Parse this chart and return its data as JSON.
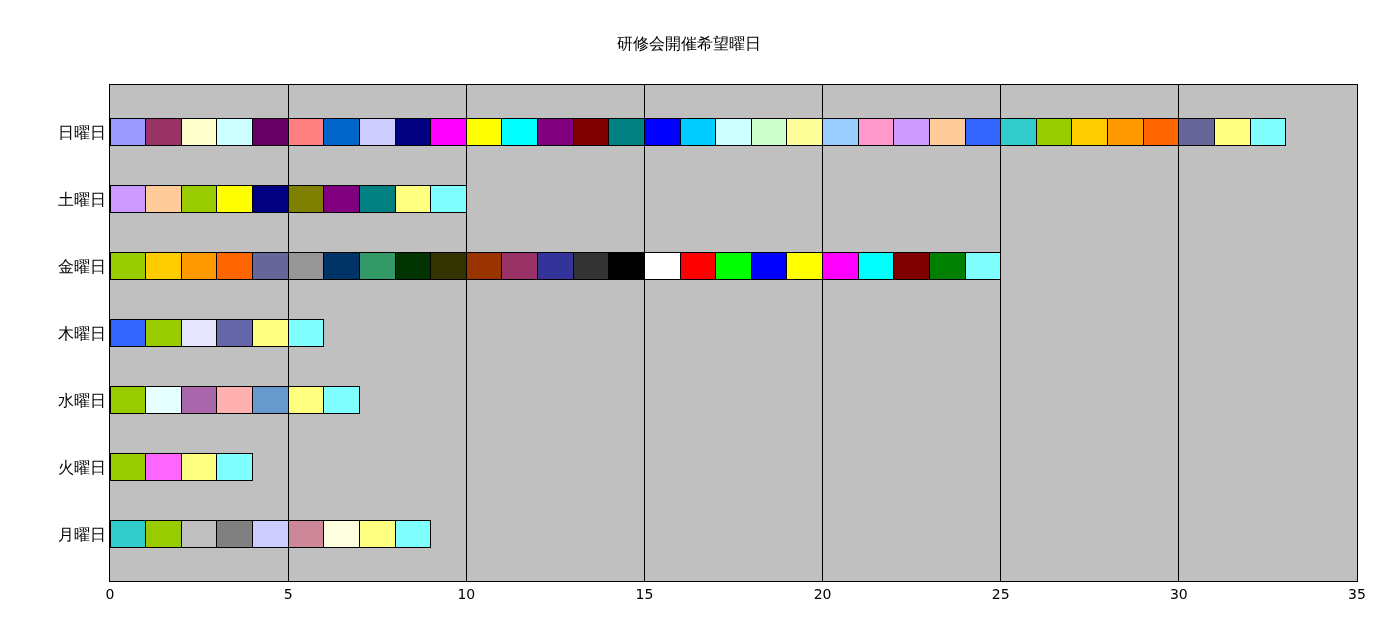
{
  "chart_data": {
    "type": "bar",
    "orientation": "horizontal",
    "stacked": true,
    "title": "研修会開催希望曜日",
    "categories": [
      "日曜日",
      "土曜日",
      "金曜日",
      "木曜日",
      "水曜日",
      "火曜日",
      "月曜日"
    ],
    "xlim": [
      0,
      35
    ],
    "xticks": [
      0,
      5,
      10,
      15,
      20,
      25,
      30,
      35
    ],
    "grid": "x",
    "series": [
      {
        "values": [
          1,
          1,
          1,
          1,
          1,
          1,
          1
        ],
        "colors": [
          "#9999ff",
          "#cc99ff",
          "#99cc00",
          "#3366ff",
          "#99cc00",
          "#99cc00",
          "#33cccc"
        ]
      },
      {
        "values": [
          1,
          1,
          1,
          1,
          1,
          1,
          1
        ],
        "colors": [
          "#993366",
          "#ffcc99",
          "#ffcc00",
          "#99cc00",
          "#e6ffff",
          "#ff66ff",
          "#99cc00"
        ]
      },
      {
        "values": [
          1,
          1,
          1,
          1,
          1,
          1,
          1
        ],
        "colors": [
          "#ffffcc",
          "#99cc00",
          "#ff9900",
          "#e6e6ff",
          "#aa66aa",
          "#ffff80",
          "#c0c0c0"
        ]
      },
      {
        "values": [
          1,
          1,
          1,
          1,
          1,
          1,
          1
        ],
        "colors": [
          "#ccffff",
          "#ffff00",
          "#ff6600",
          "#6666aa",
          "#ffb0b0",
          "#80ffff",
          "#808080"
        ]
      },
      {
        "values": [
          1,
          1,
          1,
          1,
          1,
          null,
          1
        ],
        "colors": [
          "#660066",
          "#000080",
          "#666699",
          "#ffff80",
          "#6699cc",
          null,
          "#ccccff"
        ]
      },
      {
        "values": [
          1,
          1,
          1,
          1,
          1,
          null,
          1
        ],
        "colors": [
          "#ff8080",
          "#808000",
          "#969696",
          "#80ffff",
          "#ffff80",
          null,
          "#cc8899"
        ]
      },
      {
        "values": [
          1,
          1,
          1,
          null,
          1,
          null,
          1
        ],
        "colors": [
          "#0066cc",
          "#800080",
          "#003366",
          null,
          "#80ffff",
          null,
          "#ffffe0"
        ]
      },
      {
        "values": [
          1,
          1,
          1,
          null,
          null,
          null,
          1
        ],
        "colors": [
          "#ccccff",
          "#008080",
          "#339966",
          null,
          null,
          null,
          "#ffff80"
        ]
      },
      {
        "values": [
          1,
          1,
          1,
          null,
          null,
          null,
          1
        ],
        "colors": [
          "#000080",
          "#ffff80",
          "#003300",
          null,
          null,
          null,
          "#80ffff"
        ]
      },
      {
        "values": [
          1,
          1,
          1,
          null,
          null,
          null,
          null
        ],
        "colors": [
          "#ff00ff",
          "#80ffff",
          "#333300",
          null,
          null,
          null,
          null
        ]
      },
      {
        "values": [
          1,
          null,
          1,
          null,
          null,
          null,
          null
        ],
        "colors": [
          "#ffff00",
          null,
          "#993300",
          null,
          null,
          null,
          null
        ]
      },
      {
        "values": [
          1,
          null,
          1,
          null,
          null,
          null,
          null
        ],
        "colors": [
          "#00ffff",
          null,
          "#993366",
          null,
          null,
          null,
          null
        ]
      },
      {
        "values": [
          1,
          null,
          1,
          null,
          null,
          null,
          null
        ],
        "colors": [
          "#800080",
          null,
          "#333399",
          null,
          null,
          null,
          null
        ]
      },
      {
        "values": [
          1,
          null,
          1,
          null,
          null,
          null,
          null
        ],
        "colors": [
          "#800000",
          null,
          "#333333",
          null,
          null,
          null,
          null
        ]
      },
      {
        "values": [
          1,
          null,
          1,
          null,
          null,
          null,
          null
        ],
        "colors": [
          "#008080",
          null,
          "#000000",
          null,
          null,
          null,
          null
        ]
      },
      {
        "values": [
          1,
          null,
          1,
          null,
          null,
          null,
          null
        ],
        "colors": [
          "#0000ff",
          null,
          "#ffffff",
          null,
          null,
          null,
          null
        ]
      },
      {
        "values": [
          1,
          null,
          1,
          null,
          null,
          null,
          null
        ],
        "colors": [
          "#00ccff",
          null,
          "#ff0000",
          null,
          null,
          null,
          null
        ]
      },
      {
        "values": [
          1,
          null,
          1,
          null,
          null,
          null,
          null
        ],
        "colors": [
          "#ccffff",
          null,
          "#00ff00",
          null,
          null,
          null,
          null
        ]
      },
      {
        "values": [
          1,
          null,
          1,
          null,
          null,
          null,
          null
        ],
        "colors": [
          "#ccffcc",
          null,
          "#0000ff",
          null,
          null,
          null,
          null
        ]
      },
      {
        "values": [
          1,
          null,
          1,
          null,
          null,
          null,
          null
        ],
        "colors": [
          "#ffff99",
          null,
          "#ffff00",
          null,
          null,
          null,
          null
        ]
      },
      {
        "values": [
          1,
          null,
          1,
          null,
          null,
          null,
          null
        ],
        "colors": [
          "#99ccff",
          null,
          "#ff00ff",
          null,
          null,
          null,
          null
        ]
      },
      {
        "values": [
          1,
          null,
          1,
          null,
          null,
          null,
          null
        ],
        "colors": [
          "#ff99cc",
          null,
          "#00ffff",
          null,
          null,
          null,
          null
        ]
      },
      {
        "values": [
          1,
          null,
          1,
          null,
          null,
          null,
          null
        ],
        "colors": [
          "#cc99ff",
          null,
          "#800000",
          null,
          null,
          null,
          null
        ]
      },
      {
        "values": [
          1,
          null,
          1,
          null,
          null,
          null,
          null
        ],
        "colors": [
          "#ffcc99",
          null,
          "#008000",
          null,
          null,
          null,
          null
        ]
      },
      {
        "values": [
          1,
          null,
          1,
          null,
          null,
          null,
          null
        ],
        "colors": [
          "#3366ff",
          null,
          "#80ffff",
          null,
          null,
          null,
          null
        ]
      },
      {
        "values": [
          1,
          null,
          null,
          null,
          null,
          null,
          null
        ],
        "colors": [
          "#33cccc",
          null,
          null,
          null,
          null,
          null,
          null
        ]
      },
      {
        "values": [
          1,
          null,
          null,
          null,
          null,
          null,
          null
        ],
        "colors": [
          "#99cc00",
          null,
          null,
          null,
          null,
          null,
          null
        ]
      },
      {
        "values": [
          1,
          null,
          null,
          null,
          null,
          null,
          null
        ],
        "colors": [
          "#ffcc00",
          null,
          null,
          null,
          null,
          null,
          null
        ]
      },
      {
        "values": [
          1,
          null,
          null,
          null,
          null,
          null,
          null
        ],
        "colors": [
          "#ff9900",
          null,
          null,
          null,
          null,
          null,
          null
        ]
      },
      {
        "values": [
          1,
          null,
          null,
          null,
          null,
          null,
          null
        ],
        "colors": [
          "#ff6600",
          null,
          null,
          null,
          null,
          null,
          null
        ]
      },
      {
        "values": [
          1,
          null,
          null,
          null,
          null,
          null,
          null
        ],
        "colors": [
          "#666699",
          null,
          null,
          null,
          null,
          null,
          null
        ]
      },
      {
        "values": [
          1,
          null,
          null,
          null,
          null,
          null,
          null
        ],
        "colors": [
          "#ffff80",
          null,
          null,
          null,
          null,
          null,
          null
        ]
      },
      {
        "values": [
          1,
          null,
          null,
          null,
          null,
          null,
          null
        ],
        "colors": [
          "#80ffff",
          null,
          null,
          null,
          null,
          null,
          null
        ]
      }
    ]
  }
}
